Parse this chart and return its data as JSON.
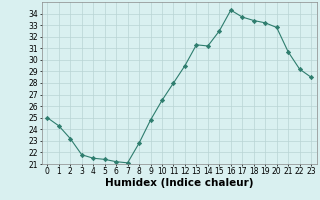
{
  "x": [
    0,
    1,
    2,
    3,
    4,
    5,
    6,
    7,
    8,
    9,
    10,
    11,
    12,
    13,
    14,
    15,
    16,
    17,
    18,
    19,
    20,
    21,
    22,
    23
  ],
  "y": [
    25.0,
    24.3,
    23.2,
    21.8,
    21.5,
    21.4,
    21.2,
    21.1,
    22.8,
    24.8,
    26.5,
    28.0,
    29.5,
    31.3,
    31.2,
    32.5,
    34.3,
    33.7,
    33.4,
    33.2,
    32.8,
    30.7,
    29.2,
    28.5
  ],
  "xlabel": "Humidex (Indice chaleur)",
  "ylim": [
    21,
    35
  ],
  "xlim": [
    -0.5,
    23.5
  ],
  "yticks": [
    21,
    22,
    23,
    24,
    25,
    26,
    27,
    28,
    29,
    30,
    31,
    32,
    33,
    34
  ],
  "xticks": [
    0,
    1,
    2,
    3,
    4,
    5,
    6,
    7,
    8,
    9,
    10,
    11,
    12,
    13,
    14,
    15,
    16,
    17,
    18,
    19,
    20,
    21,
    22,
    23
  ],
  "line_color": "#2e7d6e",
  "marker": "D",
  "marker_size": 2.2,
  "bg_color": "#d9f0f0",
  "grid_color": "#b8d4d4",
  "tick_label_fontsize": 5.5,
  "xlabel_fontsize": 7.5
}
